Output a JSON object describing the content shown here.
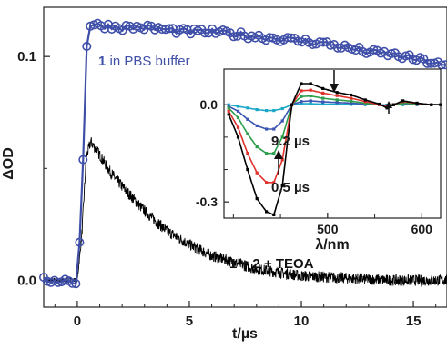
{
  "chart_data": [
    {
      "type": "line",
      "xlabel": "t/µs",
      "ylabel": "ΔOD",
      "xlim": [
        -1.5,
        16.5
      ],
      "ylim": [
        -0.012,
        0.122
      ],
      "x_ticks": [
        0,
        5,
        10,
        15
      ],
      "y_ticks": [
        0.0,
        0.1
      ],
      "x_tick_labels": [
        "0",
        "5",
        "10",
        "15"
      ],
      "y_tick_labels": [
        "0.0",
        "0.1"
      ],
      "grid": false,
      "series": [
        {
          "name_prefix": "1",
          "name_suffix": " in PBS buffer",
          "color": "#3f4fa8",
          "marker": "open-circle",
          "x": [
            -1.5,
            -0.5,
            0.0,
            0.2,
            0.45,
            1,
            2,
            3,
            4,
            5,
            6,
            7,
            8,
            9,
            10,
            11,
            12,
            13,
            14,
            15,
            16,
            16.5
          ],
          "y": [
            0.0,
            0.0,
            -0.001,
            0.035,
            0.114,
            0.114,
            0.113,
            0.113,
            0.112,
            0.111,
            0.111,
            0.11,
            0.109,
            0.108,
            0.107,
            0.106,
            0.104,
            0.102,
            0.101,
            0.099,
            0.097,
            0.095
          ]
        },
        {
          "name": "1 + 2 + TEOA",
          "color": "#000000",
          "marker": "none",
          "x": [
            -1.5,
            0.0,
            0.2,
            0.4,
            0.6,
            1.0,
            1.5,
            2,
            3,
            4,
            5,
            6,
            7,
            8,
            10,
            12,
            14,
            16.5
          ],
          "y": [
            0.0,
            0.0,
            0.02,
            0.055,
            0.062,
            0.056,
            0.048,
            0.042,
            0.031,
            0.022,
            0.016,
            0.011,
            0.008,
            0.005,
            0.002,
            0.001,
            0.0,
            0.0
          ]
        }
      ]
    },
    {
      "type": "line",
      "role": "inset",
      "xlabel": "λ/nm",
      "ylabel": "",
      "xlim": [
        390,
        620
      ],
      "ylim": [
        -0.35,
        0.11
      ],
      "x_ticks": [
        500,
        600
      ],
      "y_ticks": [
        0.0,
        -0.3
      ],
      "x_tick_labels": [
        "500",
        "600"
      ],
      "y_tick_labels": [
        "0.0",
        "-0.3"
      ],
      "annotations": [
        "9.2 µs",
        "0.5 µs"
      ],
      "series": [
        {
          "color": "#000000",
          "x": [
            395,
            405,
            415,
            425,
            435,
            443,
            452,
            462,
            472,
            482,
            495,
            510,
            525,
            540,
            555,
            563,
            570,
            580,
            595,
            610,
            620
          ],
          "y": [
            -0.03,
            -0.1,
            -0.2,
            -0.29,
            -0.33,
            -0.34,
            -0.25,
            0.0,
            0.065,
            0.065,
            0.05,
            0.038,
            0.03,
            0.015,
            0.002,
            -0.01,
            0.0,
            0.012,
            0.005,
            0.0,
            0.0
          ]
        },
        {
          "color": "#e0302a",
          "x": [
            395,
            405,
            415,
            425,
            435,
            443,
            452,
            462,
            472,
            482,
            495,
            510,
            525,
            540,
            555,
            563,
            570,
            580,
            595,
            610,
            620
          ],
          "y": [
            -0.02,
            -0.07,
            -0.15,
            -0.21,
            -0.24,
            -0.24,
            -0.17,
            0.0,
            0.043,
            0.045,
            0.036,
            0.028,
            0.02,
            0.01,
            0.0,
            -0.007,
            0.0,
            0.01,
            0.004,
            0.0,
            0.0
          ]
        },
        {
          "color": "#2c9e4b",
          "x": [
            395,
            405,
            415,
            425,
            435,
            443,
            452,
            462,
            472,
            482,
            495,
            510,
            525,
            540,
            555,
            563,
            570,
            580,
            595,
            610,
            620
          ],
          "y": [
            -0.01,
            -0.04,
            -0.09,
            -0.13,
            -0.15,
            -0.15,
            -0.1,
            0.0,
            0.025,
            0.027,
            0.02,
            0.015,
            0.011,
            0.005,
            0.0,
            -0.004,
            0.0,
            0.005,
            0.002,
            0.0,
            0.0
          ]
        },
        {
          "color": "#3a55b4",
          "x": [
            395,
            405,
            415,
            425,
            435,
            443,
            452,
            462,
            472,
            482,
            495,
            510,
            525,
            540,
            555,
            563,
            570,
            580,
            595,
            610,
            620
          ],
          "y": [
            -0.005,
            -0.02,
            -0.045,
            -0.065,
            -0.075,
            -0.075,
            -0.05,
            0.0,
            0.01,
            0.012,
            0.009,
            0.007,
            0.005,
            0.002,
            0.0,
            -0.002,
            0.0,
            0.002,
            0.001,
            0.0,
            0.0
          ]
        },
        {
          "color": "#1aa7c8",
          "x": [
            395,
            405,
            415,
            425,
            435,
            443,
            452,
            462,
            472,
            482,
            495,
            510,
            525,
            540,
            555,
            563,
            570,
            580,
            595,
            610,
            620
          ],
          "y": [
            0.0,
            -0.005,
            -0.01,
            -0.015,
            -0.018,
            -0.018,
            -0.012,
            0.0,
            0.003,
            0.003,
            0.002,
            0.002,
            0.001,
            0.0,
            0.0,
            -0.001,
            0.0,
            0.0,
            0.0,
            0.0,
            0.0
          ]
        }
      ]
    }
  ]
}
